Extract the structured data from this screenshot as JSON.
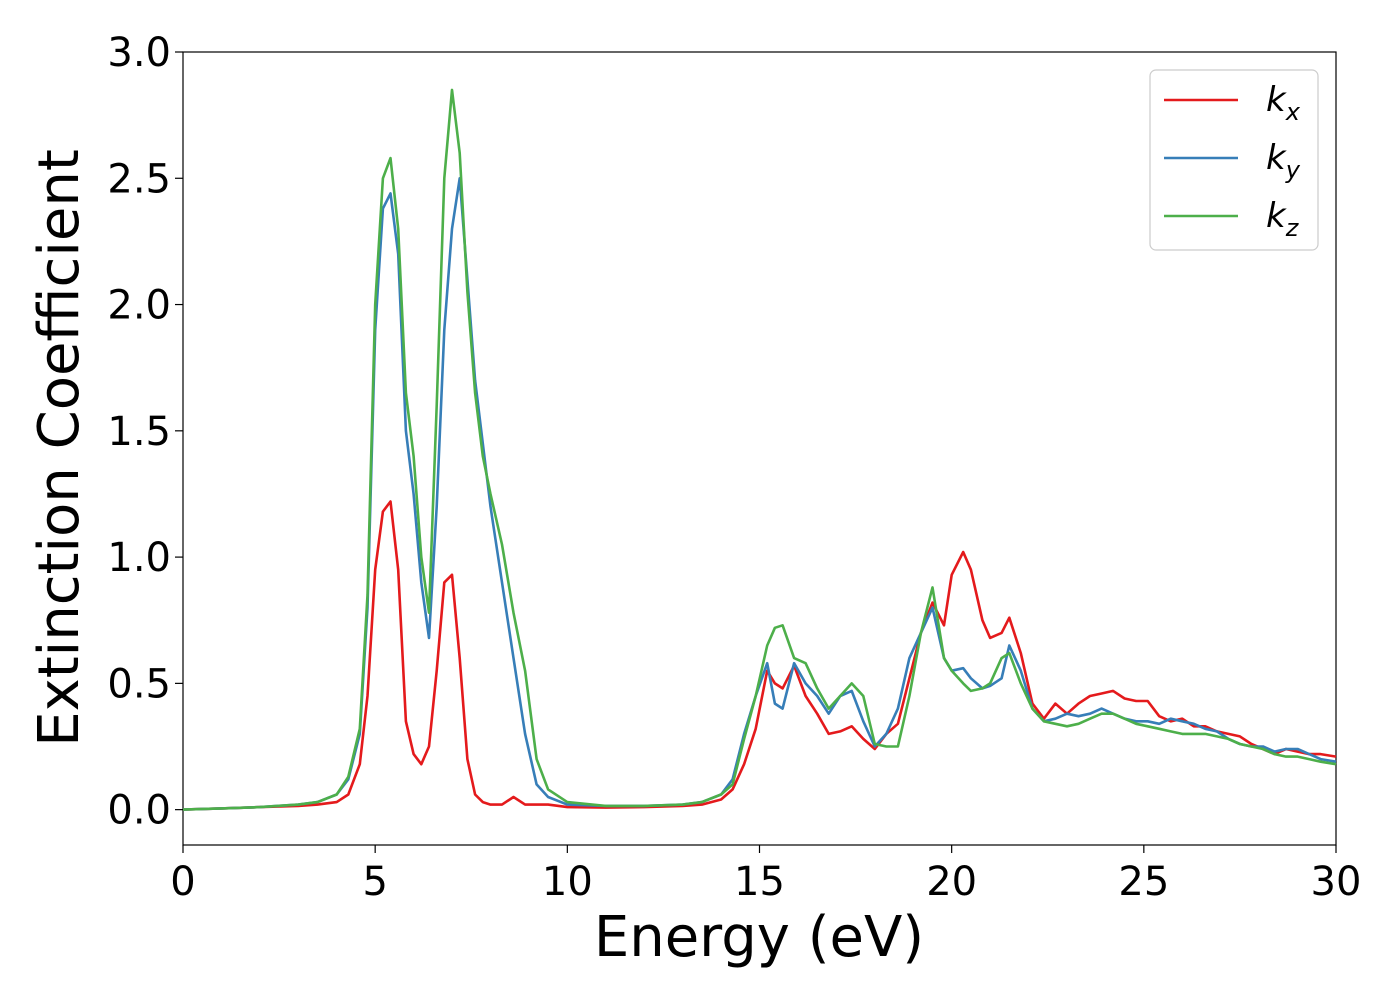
{
  "chart_data": {
    "type": "line",
    "title": "",
    "xlabel": "Energy (eV)",
    "ylabel": "Extinction Coefficient",
    "xlim": [
      0,
      30
    ],
    "ylim": [
      -0.14,
      3.0
    ],
    "xticks": [
      0,
      5,
      10,
      15,
      20,
      25,
      30
    ],
    "xtick_labels": [
      "0",
      "5",
      "10",
      "15",
      "20",
      "25",
      "30"
    ],
    "yticks": [
      0.0,
      0.5,
      1.0,
      1.5,
      2.0,
      2.5,
      3.0
    ],
    "ytick_labels": [
      "0.0",
      "0.5",
      "1.0",
      "1.5",
      "2.0",
      "2.5",
      "3.0"
    ],
    "grid": false,
    "legend_position": "top-right",
    "series": [
      {
        "name": "k",
        "subscript": "x",
        "color": "#e41a1c",
        "x": [
          0,
          1,
          2,
          3,
          3.5,
          4,
          4.3,
          4.6,
          4.8,
          5.0,
          5.2,
          5.4,
          5.6,
          5.8,
          6.0,
          6.2,
          6.4,
          6.6,
          6.8,
          7.0,
          7.2,
          7.4,
          7.6,
          7.8,
          8.0,
          8.3,
          8.6,
          8.9,
          9.2,
          9.5,
          10.0,
          11,
          12,
          13,
          13.5,
          14.0,
          14.3,
          14.6,
          14.9,
          15.2,
          15.4,
          15.6,
          15.9,
          16.2,
          16.5,
          16.8,
          17.1,
          17.4,
          17.7,
          18.0,
          18.3,
          18.6,
          18.9,
          19.2,
          19.5,
          19.8,
          20.0,
          20.3,
          20.5,
          20.8,
          21.0,
          21.3,
          21.5,
          21.8,
          22.1,
          22.4,
          22.7,
          23.0,
          23.3,
          23.6,
          23.9,
          24.2,
          24.5,
          24.8,
          25.1,
          25.4,
          25.7,
          26.0,
          26.3,
          26.6,
          26.9,
          27.2,
          27.5,
          27.8,
          28.1,
          28.4,
          28.7,
          29.0,
          29.3,
          29.6,
          30.0
        ],
        "y": [
          0.0,
          0.005,
          0.01,
          0.015,
          0.02,
          0.03,
          0.06,
          0.18,
          0.45,
          0.95,
          1.18,
          1.22,
          0.95,
          0.35,
          0.22,
          0.18,
          0.25,
          0.55,
          0.9,
          0.93,
          0.6,
          0.2,
          0.06,
          0.03,
          0.02,
          0.02,
          0.05,
          0.02,
          0.02,
          0.02,
          0.01,
          0.008,
          0.01,
          0.015,
          0.02,
          0.04,
          0.08,
          0.18,
          0.32,
          0.55,
          0.5,
          0.48,
          0.57,
          0.45,
          0.38,
          0.3,
          0.31,
          0.33,
          0.28,
          0.24,
          0.3,
          0.34,
          0.52,
          0.7,
          0.82,
          0.73,
          0.93,
          1.02,
          0.95,
          0.75,
          0.68,
          0.7,
          0.76,
          0.62,
          0.42,
          0.36,
          0.42,
          0.38,
          0.42,
          0.45,
          0.46,
          0.47,
          0.44,
          0.43,
          0.43,
          0.37,
          0.35,
          0.36,
          0.33,
          0.33,
          0.31,
          0.3,
          0.29,
          0.26,
          0.24,
          0.22,
          0.24,
          0.23,
          0.22,
          0.22,
          0.21
        ]
      },
      {
        "name": "k",
        "subscript": "y",
        "color": "#377eb8",
        "x": [
          0,
          1,
          2,
          3,
          3.5,
          4,
          4.3,
          4.6,
          4.8,
          5.0,
          5.2,
          5.4,
          5.6,
          5.8,
          6.0,
          6.2,
          6.4,
          6.6,
          6.8,
          7.0,
          7.2,
          7.4,
          7.6,
          7.8,
          8.0,
          8.3,
          8.6,
          8.9,
          9.2,
          9.5,
          10.0,
          11,
          12,
          13,
          13.5,
          14.0,
          14.3,
          14.6,
          14.9,
          15.2,
          15.4,
          15.6,
          15.9,
          16.2,
          16.5,
          16.8,
          17.1,
          17.4,
          17.7,
          18.0,
          18.3,
          18.6,
          18.9,
          19.2,
          19.5,
          19.8,
          20.0,
          20.3,
          20.5,
          20.8,
          21.0,
          21.3,
          21.5,
          21.8,
          22.1,
          22.4,
          22.7,
          23.0,
          23.3,
          23.6,
          23.9,
          24.2,
          24.5,
          24.8,
          25.1,
          25.4,
          25.7,
          26.0,
          26.3,
          26.6,
          26.9,
          27.2,
          27.5,
          27.8,
          28.1,
          28.4,
          28.7,
          29.0,
          29.3,
          29.6,
          30.0
        ],
        "y": [
          0.0,
          0.005,
          0.01,
          0.02,
          0.03,
          0.06,
          0.12,
          0.3,
          0.8,
          1.9,
          2.38,
          2.44,
          2.2,
          1.5,
          1.25,
          0.9,
          0.68,
          1.2,
          1.9,
          2.3,
          2.5,
          2.1,
          1.7,
          1.45,
          1.2,
          0.9,
          0.6,
          0.3,
          0.1,
          0.05,
          0.02,
          0.015,
          0.015,
          0.02,
          0.03,
          0.06,
          0.12,
          0.3,
          0.45,
          0.58,
          0.42,
          0.4,
          0.58,
          0.5,
          0.45,
          0.38,
          0.45,
          0.47,
          0.35,
          0.25,
          0.3,
          0.4,
          0.6,
          0.7,
          0.8,
          0.6,
          0.55,
          0.56,
          0.52,
          0.48,
          0.49,
          0.52,
          0.65,
          0.55,
          0.4,
          0.35,
          0.36,
          0.38,
          0.37,
          0.38,
          0.4,
          0.38,
          0.36,
          0.35,
          0.35,
          0.34,
          0.36,
          0.35,
          0.34,
          0.32,
          0.31,
          0.28,
          0.26,
          0.25,
          0.25,
          0.23,
          0.24,
          0.24,
          0.22,
          0.2,
          0.19
        ]
      },
      {
        "name": "k",
        "subscript": "z",
        "color": "#4daf4a",
        "x": [
          0,
          1,
          2,
          3,
          3.5,
          4,
          4.3,
          4.6,
          4.8,
          5.0,
          5.2,
          5.4,
          5.6,
          5.8,
          6.0,
          6.2,
          6.4,
          6.6,
          6.8,
          7.0,
          7.2,
          7.4,
          7.6,
          7.8,
          8.0,
          8.3,
          8.6,
          8.9,
          9.2,
          9.5,
          10.0,
          11,
          12,
          13,
          13.5,
          14.0,
          14.3,
          14.6,
          14.9,
          15.2,
          15.4,
          15.6,
          15.9,
          16.2,
          16.5,
          16.8,
          17.1,
          17.4,
          17.7,
          18.0,
          18.3,
          18.6,
          18.9,
          19.2,
          19.5,
          19.8,
          20.0,
          20.3,
          20.5,
          20.8,
          21.0,
          21.3,
          21.5,
          21.8,
          22.1,
          22.4,
          22.7,
          23.0,
          23.3,
          23.6,
          23.9,
          24.2,
          24.5,
          24.8,
          25.1,
          25.4,
          25.7,
          26.0,
          26.3,
          26.6,
          26.9,
          27.2,
          27.5,
          27.8,
          28.1,
          28.4,
          28.7,
          29.0,
          29.3,
          29.6,
          30.0
        ],
        "y": [
          0.0,
          0.005,
          0.01,
          0.02,
          0.03,
          0.06,
          0.13,
          0.32,
          0.85,
          2.0,
          2.5,
          2.58,
          2.3,
          1.65,
          1.4,
          1.0,
          0.78,
          1.6,
          2.5,
          2.85,
          2.6,
          2.05,
          1.65,
          1.4,
          1.25,
          1.05,
          0.78,
          0.55,
          0.2,
          0.08,
          0.03,
          0.015,
          0.015,
          0.02,
          0.03,
          0.06,
          0.1,
          0.28,
          0.45,
          0.65,
          0.72,
          0.73,
          0.6,
          0.58,
          0.48,
          0.4,
          0.45,
          0.5,
          0.45,
          0.26,
          0.25,
          0.25,
          0.45,
          0.7,
          0.88,
          0.6,
          0.55,
          0.5,
          0.47,
          0.48,
          0.5,
          0.6,
          0.62,
          0.5,
          0.4,
          0.35,
          0.34,
          0.33,
          0.34,
          0.36,
          0.38,
          0.38,
          0.36,
          0.34,
          0.33,
          0.32,
          0.31,
          0.3,
          0.3,
          0.3,
          0.29,
          0.28,
          0.26,
          0.25,
          0.24,
          0.22,
          0.21,
          0.21,
          0.2,
          0.19,
          0.18
        ]
      }
    ]
  }
}
